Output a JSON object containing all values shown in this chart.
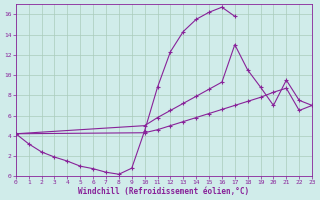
{
  "xlabel": "Windchill (Refroidissement éolien,°C)",
  "xlim": [
    0,
    23
  ],
  "ylim": [
    0,
    17
  ],
  "xticks": [
    0,
    1,
    2,
    3,
    4,
    5,
    6,
    7,
    8,
    9,
    10,
    11,
    12,
    13,
    14,
    15,
    16,
    17,
    18,
    19,
    20,
    21,
    22,
    23
  ],
  "yticks": [
    0,
    2,
    4,
    6,
    8,
    10,
    12,
    14,
    16
  ],
  "bg_color": "#d0ecea",
  "line_color": "#882299",
  "grid_color": "#aaccbb",
  "curve1_x": [
    0,
    1,
    2,
    3,
    4,
    5,
    6,
    7,
    8,
    9,
    10,
    11,
    12,
    13,
    14,
    15,
    16,
    17
  ],
  "curve1_y": [
    4.2,
    3.2,
    2.4,
    1.9,
    1.5,
    1.0,
    0.75,
    0.4,
    0.2,
    0.8,
    4.5,
    8.8,
    12.3,
    14.3,
    15.5,
    16.2,
    16.7,
    15.8
  ],
  "curve2_x": [
    0,
    10,
    11,
    12,
    13,
    14,
    15,
    16,
    17,
    18,
    19,
    20,
    21,
    22,
    23
  ],
  "curve2_y": [
    4.2,
    5.0,
    5.8,
    6.5,
    7.2,
    7.9,
    8.6,
    9.3,
    13.0,
    10.5,
    8.8,
    7.0,
    9.5,
    7.5,
    7.0
  ],
  "curve3_x": [
    0,
    10,
    11,
    12,
    13,
    14,
    15,
    16,
    17,
    18,
    19,
    20,
    21,
    22,
    23
  ],
  "curve3_y": [
    4.2,
    4.3,
    4.6,
    5.0,
    5.4,
    5.8,
    6.2,
    6.6,
    7.0,
    7.4,
    7.8,
    8.3,
    8.7,
    6.5,
    7.0
  ],
  "marker": "+"
}
